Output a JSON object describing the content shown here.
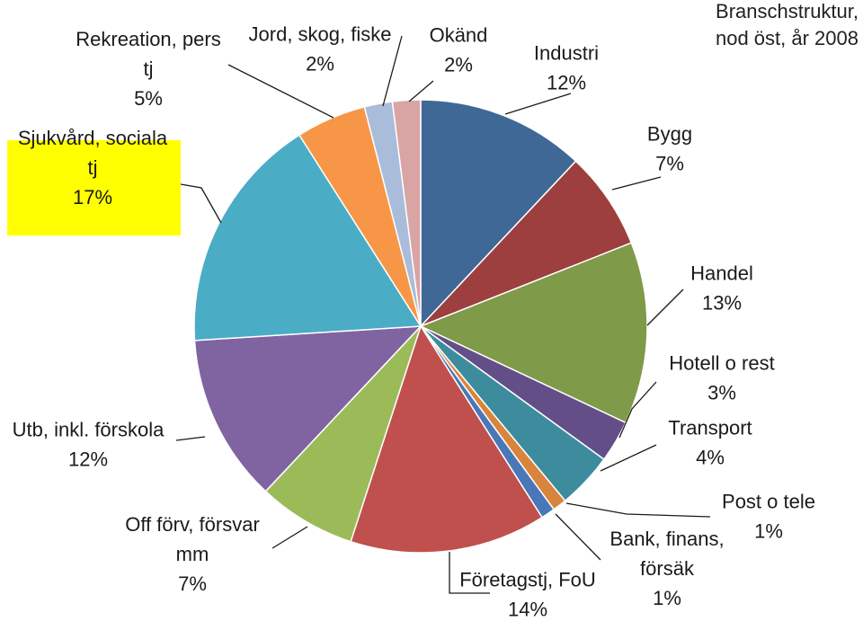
{
  "chart_data": {
    "type": "pie",
    "title": "Branschstruktur, nod öst, år 2008",
    "title_lines": [
      "Branschstruktur,",
      "nod öst, år 2008"
    ],
    "start_angle_deg": 0,
    "direction": "clockwise",
    "highlight_color": "#ffff00",
    "slices": [
      {
        "label": "Industri",
        "label_lines": [
          "Industri"
        ],
        "pct_text": "12%",
        "value": 12,
        "color": "#3f6896"
      },
      {
        "label": "Bygg",
        "label_lines": [
          "Bygg"
        ],
        "pct_text": "7%",
        "value": 7,
        "color": "#9c3f3e"
      },
      {
        "label": "Handel",
        "label_lines": [
          "Handel"
        ],
        "pct_text": "13%",
        "value": 13,
        "color": "#7f9a49"
      },
      {
        "label": "Hotell o rest",
        "label_lines": [
          "Hotell o rest"
        ],
        "pct_text": "3%",
        "value": 3,
        "color": "#644e88"
      },
      {
        "label": "Transport",
        "label_lines": [
          "Transport"
        ],
        "pct_text": "4%",
        "value": 4,
        "color": "#3d8c9e"
      },
      {
        "label": "Post o tele",
        "label_lines": [
          "Post o tele"
        ],
        "pct_text": "1%",
        "value": 1,
        "color": "#d9843c"
      },
      {
        "label": "Bank, finans, försäk",
        "label_lines": [
          "Bank, finans,",
          "försäk"
        ],
        "pct_text": "1%",
        "value": 1,
        "color": "#4a77b8"
      },
      {
        "label": "Företagstj, FoU",
        "label_lines": [
          "Företagstj, FoU"
        ],
        "pct_text": "14%",
        "value": 14,
        "color": "#c0504d"
      },
      {
        "label": "Off förv, försvar mm",
        "label_lines": [
          "Off förv, försvar",
          "mm"
        ],
        "pct_text": "7%",
        "value": 7,
        "color": "#9bbb59"
      },
      {
        "label": "Utb, inkl. förskola",
        "label_lines": [
          "Utb, inkl. förskola"
        ],
        "pct_text": "12%",
        "value": 12,
        "color": "#8064a2"
      },
      {
        "label": "Sjukvård, sociala tj",
        "label_lines": [
          "Sjukvård, sociala",
          "tj"
        ],
        "pct_text": "17%",
        "value": 17,
        "color": "#4bacc6",
        "highlighted": true
      },
      {
        "label": "Rekreation, pers tj",
        "label_lines": [
          "Rekreation, pers",
          "tj"
        ],
        "pct_text": "5%",
        "value": 5,
        "color": "#f79646"
      },
      {
        "label": "Jord, skog, fiske",
        "label_lines": [
          "Jord, skog, fiske"
        ],
        "pct_text": "2%",
        "value": 2,
        "color": "#a9bcda"
      },
      {
        "label": "Okänd",
        "label_lines": [
          "Okänd"
        ],
        "pct_text": "2%",
        "value": 2,
        "color": "#d9a5a4"
      }
    ]
  }
}
